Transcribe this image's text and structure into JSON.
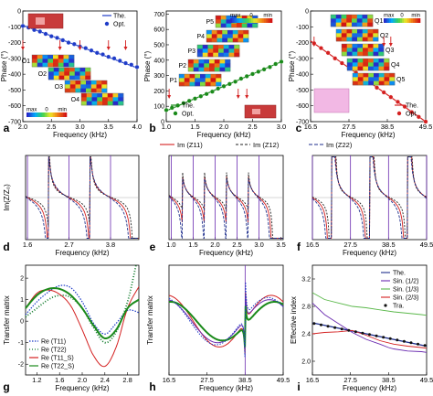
{
  "colors": {
    "blue": "#1f3cc8",
    "green": "#1a8a1a",
    "red": "#d42020",
    "navy": "#1e2e8c",
    "purple": "#6a2bb0",
    "darkgreen": "#0f7a2a",
    "lightgreen": "#5ab84a"
  },
  "inset_scale": {
    "max_label": "max",
    "min_label": "min",
    "zero_label": "0"
  },
  "chart_data": [
    {
      "panel": "a",
      "type": "scatter",
      "xlabel": "Frequency (kHz)",
      "ylabel": "Phase (°)",
      "xlim": [
        2.0,
        4.0
      ],
      "ylim": [
        -700,
        0
      ],
      "xticks": [
        2.0,
        2.5,
        3.0,
        3.5,
        4.0
      ],
      "xtick_labels": [
        "2.0",
        "2.5",
        "3.0",
        "3.5",
        "4.0"
      ],
      "yticks": [
        -700,
        -600,
        -500,
        -400,
        -300,
        -200,
        -100,
        0
      ],
      "ytick_labels": [
        "-700",
        "-600",
        "-500",
        "-400",
        "-300",
        "-200",
        "-100",
        "0"
      ],
      "legend": [
        "The.",
        "Opt."
      ],
      "mode_labels": [
        "O1",
        "O2",
        "O3",
        "O4"
      ],
      "series": [
        {
          "name": "The.",
          "kind": "line",
          "x": [
            2.0,
            4.0
          ],
          "y": [
            -90,
            -360
          ]
        },
        {
          "name": "Opt.",
          "kind": "points",
          "x": [
            2.0,
            2.1,
            2.2,
            2.3,
            2.4,
            2.5,
            2.6,
            2.7,
            2.8,
            2.9,
            3.0,
            3.1,
            3.2,
            3.3,
            3.4,
            3.5,
            3.6,
            3.7,
            3.8,
            3.9,
            4.0
          ],
          "y": [
            -95,
            -105,
            -120,
            -130,
            -145,
            -160,
            -170,
            -185,
            -200,
            -210,
            -225,
            -235,
            -250,
            -265,
            -275,
            -290,
            -300,
            -315,
            -330,
            -340,
            -355
          ]
        }
      ]
    },
    {
      "panel": "b",
      "type": "scatter",
      "xlabel": "Frequency (kHz)",
      "ylabel": "Phase (°)",
      "xlim": [
        1.0,
        3.0
      ],
      "ylim": [
        0,
        720
      ],
      "xticks": [
        1.0,
        1.5,
        2.0,
        2.5,
        3.0
      ],
      "xtick_labels": [
        "1.0",
        "1.5",
        "2.0",
        "2.5",
        "3.0"
      ],
      "yticks": [
        0,
        100,
        200,
        300,
        400,
        500,
        600,
        700
      ],
      "ytick_labels": [
        "0",
        "100",
        "200",
        "300",
        "400",
        "500",
        "600",
        "700"
      ],
      "legend": [
        "The.",
        "Opt."
      ],
      "mode_labels": [
        "P1",
        "P2",
        "P3",
        "P4",
        "P5"
      ],
      "series": [
        {
          "name": "The.",
          "kind": "line",
          "x": [
            1.0,
            3.0
          ],
          "y": [
            70,
            390
          ]
        },
        {
          "name": "Opt.",
          "kind": "points",
          "x": [
            1.0,
            1.1,
            1.2,
            1.3,
            1.4,
            1.5,
            1.6,
            1.7,
            1.8,
            1.9,
            2.0,
            2.1,
            2.2,
            2.3,
            2.4,
            2.5,
            2.6,
            2.7,
            2.8,
            2.9,
            3.0
          ],
          "y": [
            75,
            90,
            105,
            120,
            135,
            150,
            165,
            180,
            195,
            215,
            230,
            245,
            260,
            280,
            295,
            310,
            325,
            340,
            355,
            375,
            390
          ]
        }
      ]
    },
    {
      "panel": "c",
      "type": "scatter",
      "xlabel": "Frequency (kHz)",
      "ylabel": "Phase (°)",
      "xlim": [
        16.5,
        49.5
      ],
      "ylim": [
        -700,
        0
      ],
      "xticks": [
        16.5,
        27.5,
        38.5,
        49.5
      ],
      "xtick_labels": [
        "16.5",
        "27.5",
        "38.5",
        "49.5"
      ],
      "yticks": [
        -700,
        -600,
        -500,
        -400,
        -300,
        -200,
        -100,
        0
      ],
      "ytick_labels": [
        "-700",
        "-600",
        "-500",
        "-400",
        "-300",
        "-200",
        "-100",
        "0"
      ],
      "legend": [
        "The.",
        "Opt."
      ],
      "mode_labels": [
        "Q1",
        "Q2",
        "Q3",
        "Q4",
        "Q5"
      ],
      "series": [
        {
          "name": "The.",
          "kind": "line",
          "x": [
            16.5,
            49.5
          ],
          "y": [
            -190,
            -700
          ]
        },
        {
          "name": "Opt.",
          "kind": "points",
          "x": [
            17.5,
            19.5,
            21.5,
            23.5,
            25.5,
            27.5,
            29.5,
            31.5,
            33.5,
            35.5,
            37.5,
            39.5,
            41.5,
            43.5,
            45.5,
            47.5,
            49.5
          ],
          "y": [
            -205,
            -235,
            -265,
            -300,
            -330,
            -360,
            -390,
            -420,
            -450,
            -485,
            -515,
            -545,
            -575,
            -605,
            -640,
            -670,
            -700
          ]
        }
      ]
    },
    {
      "panel": "d",
      "type": "line",
      "xlabel": "Frequency (kHz)",
      "ylabel": "Im(Z/Z₀)",
      "xlim": [
        1.55,
        4.55
      ],
      "ylim": [
        -6,
        6
      ],
      "xticks": [
        1.6,
        2.7,
        3.8
      ],
      "xtick_labels": [
        "1.6",
        "2.7",
        "3.8"
      ],
      "legend": [
        "Im (Z11)",
        "Im (Z12)",
        "Im (Z22)"
      ],
      "resonances": [
        1.6,
        2.7,
        3.8
      ]
    },
    {
      "panel": "e",
      "type": "line",
      "xlabel": "Frequency (kHz)",
      "ylabel": "",
      "xlim": [
        0.95,
        3.55
      ],
      "ylim": [
        -6,
        6
      ],
      "xticks": [
        1.0,
        1.5,
        2.0,
        2.5,
        3.0,
        3.5
      ],
      "xtick_labels": [
        "1.0",
        "1.5",
        "2.0",
        "2.5",
        "3.0",
        "3.5"
      ],
      "resonances": [
        1.0,
        1.5,
        2.0,
        2.5,
        3.0
      ]
    },
    {
      "panel": "f",
      "type": "line",
      "xlabel": "Frequency (kHz)",
      "ylabel": "",
      "xlim": [
        16.5,
        49.5
      ],
      "ylim": [
        -6,
        6
      ],
      "xticks": [
        16.5,
        27.5,
        38.5,
        49.5
      ],
      "xtick_labels": [
        "16.5",
        "27.5",
        "38.5",
        "49.5"
      ],
      "resonances": [
        16.5,
        27.5,
        38.5,
        49.5
      ]
    },
    {
      "panel": "g",
      "type": "line",
      "xlabel": "Frequency (kHz)",
      "ylabel": "Transfer matrix",
      "xlim": [
        1.0,
        3.0
      ],
      "ylim": [
        -2.5,
        2.6
      ],
      "xticks": [
        1.2,
        1.6,
        2.0,
        2.4,
        2.8
      ],
      "xtick_labels": [
        "1.2",
        "1.6",
        "2.0",
        "2.4",
        "2.8"
      ],
      "yticks": [
        -2,
        -1,
        0,
        1,
        2
      ],
      "ytick_labels": [
        "-2",
        "-1",
        "0",
        "1",
        "2"
      ],
      "legend": [
        "Re (T11)",
        "Re (T22)",
        "Re (T11_S)",
        "Re (T22_S)"
      ],
      "series": [
        {
          "name": "Re (T11)",
          "x": [
            1.0,
            1.2,
            1.4,
            1.6,
            1.8,
            2.0,
            2.2,
            2.4,
            2.6,
            2.8,
            3.0
          ],
          "y": [
            0.3,
            0.9,
            1.35,
            1.65,
            1.55,
            0.9,
            -0.1,
            -0.6,
            -0.1,
            0.5,
            0.4
          ]
        },
        {
          "name": "Re (T22)",
          "x": [
            1.0,
            1.2,
            1.4,
            1.6,
            1.8,
            2.0,
            2.2,
            2.4,
            2.6,
            2.8,
            2.95
          ],
          "y": [
            0.2,
            0.6,
            1.0,
            1.2,
            1.1,
            0.6,
            -0.3,
            -1.0,
            -0.5,
            0.9,
            2.6
          ]
        },
        {
          "name": "Re (T11_S)",
          "x": [
            1.0,
            1.2,
            1.4,
            1.6,
            1.8,
            2.0,
            2.2,
            2.4,
            2.6,
            2.8,
            3.0
          ],
          "y": [
            0.6,
            1.3,
            1.45,
            1.25,
            0.7,
            -0.4,
            -1.6,
            -2.1,
            -1.2,
            0.6,
            1.6
          ]
        },
        {
          "name": "Re (T22_S)",
          "x": [
            1.0,
            1.2,
            1.4,
            1.6,
            1.8,
            2.0,
            2.2,
            2.4,
            2.6,
            2.8,
            3.0
          ],
          "y": [
            0.6,
            1.2,
            1.5,
            1.5,
            1.2,
            0.6,
            -0.2,
            -0.8,
            -0.4,
            0.6,
            1.0
          ]
        }
      ]
    },
    {
      "panel": "h",
      "type": "line",
      "xlabel": "Frequency (kHz)",
      "ylabel": "Transfer matrix",
      "xlim": [
        16.5,
        49.5
      ],
      "ylim": [
        -2.5,
        2.6
      ],
      "xticks": [
        16.5,
        27.5,
        38.5,
        49.5
      ],
      "xtick_labels": [
        "16.5",
        "27.5",
        "38.5",
        "49.5"
      ]
    },
    {
      "panel": "i",
      "type": "line",
      "xlabel": "Frequency (kHz)",
      "ylabel": "Effective index",
      "xlim": [
        16.5,
        49.5
      ],
      "ylim": [
        1.8,
        3.4
      ],
      "xticks": [
        16.5,
        27.5,
        38.5,
        49.5
      ],
      "xtick_labels": [
        "16.5",
        "27.5",
        "38.5",
        "49.5"
      ],
      "yticks": [
        2.0,
        2.4,
        2.8,
        3.2
      ],
      "ytick_labels": [
        "2.0",
        "2.4",
        "2.8",
        "3.2"
      ],
      "legend": [
        "The.",
        "Sin. (1/2)",
        "Sin. (1/3)",
        "Sin. (2/3)",
        "Tra."
      ],
      "series": [
        {
          "name": "The.",
          "x": [
            16.5,
            49.5
          ],
          "y": [
            2.56,
            2.22
          ]
        },
        {
          "name": "Sin. (1/2)",
          "x": [
            16.5,
            20,
            24,
            28,
            32,
            36,
            38.5,
            40,
            44,
            48,
            49.5
          ],
          "y": [
            2.85,
            2.68,
            2.55,
            2.42,
            2.32,
            2.25,
            2.2,
            2.18,
            2.15,
            2.14,
            2.13
          ]
        },
        {
          "name": "Sin. (1/3)",
          "x": [
            16.5,
            20,
            24,
            28,
            32,
            36,
            40,
            44,
            48,
            49.5
          ],
          "y": [
            3.0,
            2.9,
            2.85,
            2.8,
            2.78,
            2.75,
            2.72,
            2.7,
            2.68,
            2.67
          ]
        },
        {
          "name": "Sin. (2/3)",
          "x": [
            16.5,
            20,
            24,
            28,
            32,
            36,
            40,
            44,
            48,
            49.5
          ],
          "y": [
            2.4,
            2.42,
            2.43,
            2.45,
            2.38,
            2.3,
            2.25,
            2.22,
            2.2,
            2.19
          ]
        },
        {
          "name": "Tra.",
          "x": [
            17,
            19,
            21,
            23,
            25,
            27,
            29,
            31,
            33,
            35,
            37,
            39,
            41,
            43,
            45,
            47,
            49
          ],
          "y": [
            2.55,
            2.53,
            2.51,
            2.49,
            2.47,
            2.45,
            2.43,
            2.41,
            2.39,
            2.37,
            2.35,
            2.33,
            2.31,
            2.29,
            2.27,
            2.25,
            2.23
          ]
        }
      ]
    }
  ]
}
